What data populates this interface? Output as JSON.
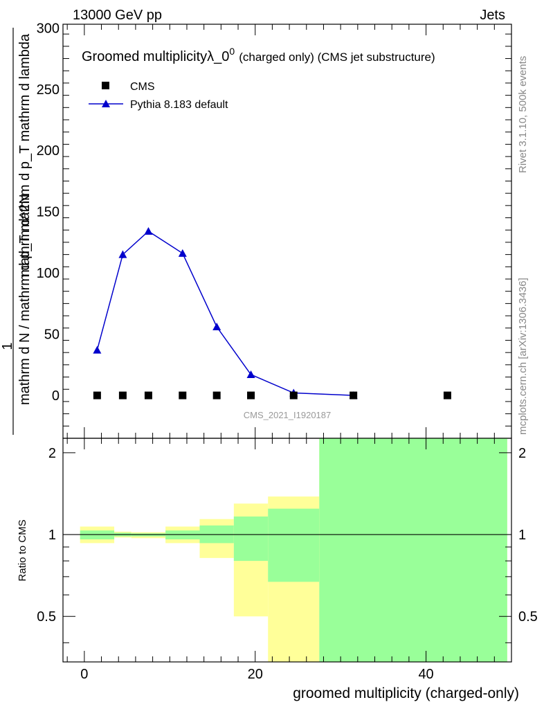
{
  "header": {
    "left": "13000 GeV pp",
    "right": "Jets"
  },
  "side": {
    "rivet": "Rivet 3.1.10,  500k events",
    "mcplots": "mcplots.cern.ch [arXiv:1306.3436]"
  },
  "chart_data": [
    {
      "type": "line",
      "panel": "main",
      "title": "Groomed multiplicity",
      "title_symbol": "λ_0",
      "title_superscript": "0",
      "title_suffix": "(charged only) (CMS jet substructure)",
      "ylabel_left": "1",
      "ylabel_left_denominator": "mathrm d N / mathrm d p_T mathrm d p_T mathrm d lambda",
      "ylabel_numerator": "mathrm d^2N",
      "ylim": [
        -35,
        303
      ],
      "yticks": [
        0,
        50,
        100,
        150,
        200,
        250,
        300
      ],
      "xlim": [
        -2.5,
        50
      ],
      "analysis_label": "CMS_2021_I1920187",
      "legend": [
        "CMS",
        "Pythia 8.183 default"
      ],
      "series": [
        {
          "name": "CMS",
          "color": "#000000",
          "marker": "square",
          "x": [
            1.5,
            4.5,
            7.5,
            11.5,
            15.5,
            19.5,
            24.5,
            31.5,
            42.5
          ],
          "values": [
            0,
            0,
            0,
            0,
            0,
            0,
            0,
            0,
            0
          ]
        },
        {
          "name": "Pythia 8.183 default",
          "color": "#0000cc",
          "marker": "triangle",
          "x": [
            1.5,
            4.5,
            7.5,
            11.5,
            15.5,
            19.5,
            24.5,
            31.5
          ],
          "values": [
            37,
            115,
            134,
            116,
            56,
            17,
            2,
            0
          ],
          "errors": [
            1.5,
            3,
            2.5,
            2,
            1.5,
            1,
            0.5,
            0.2
          ]
        }
      ]
    },
    {
      "type": "area",
      "panel": "ratio",
      "ylabel": "Ratio to CMS",
      "xlabel": "groomed multiplicity (charged-only)",
      "ylim": [
        0.34,
        2.26
      ],
      "yticks": [
        0.5,
        1,
        2
      ],
      "xticks": [
        0,
        20,
        40
      ],
      "xlim": [
        -2.5,
        50
      ],
      "reference_line": 1,
      "bands": [
        {
          "xlo": -0.5,
          "xhi": 3.5,
          "outer": [
            0.93,
            1.07
          ],
          "inner": [
            0.96,
            1.035
          ]
        },
        {
          "xlo": 3.5,
          "xhi": 5.5,
          "outer": [
            0.975,
            1.025
          ],
          "inner": [
            0.985,
            1.015
          ]
        },
        {
          "xlo": 5.5,
          "xhi": 9.5,
          "outer": [
            0.97,
            1.02
          ],
          "inner": [
            0.985,
            1.01
          ]
        },
        {
          "xlo": 9.5,
          "xhi": 13.5,
          "outer": [
            0.93,
            1.07
          ],
          "inner": [
            0.96,
            1.035
          ]
        },
        {
          "xlo": 13.5,
          "xhi": 17.5,
          "outer": [
            0.82,
            1.14
          ],
          "inner": [
            0.93,
            1.08
          ]
        },
        {
          "xlo": 17.5,
          "xhi": 21.5,
          "outer": [
            0.5,
            1.3
          ],
          "inner": [
            0.8,
            1.165
          ]
        },
        {
          "xlo": 21.5,
          "xhi": 27.5,
          "outer": [
            0.34,
            1.38
          ],
          "inner": [
            0.67,
            1.245
          ]
        },
        {
          "xlo": 27.5,
          "xhi": 49.5,
          "outer": [
            0.34,
            2.26
          ],
          "inner": [
            0.34,
            2.26
          ]
        }
      ],
      "colors": {
        "outer": "#ffff99",
        "inner": "#99ff99"
      }
    }
  ]
}
